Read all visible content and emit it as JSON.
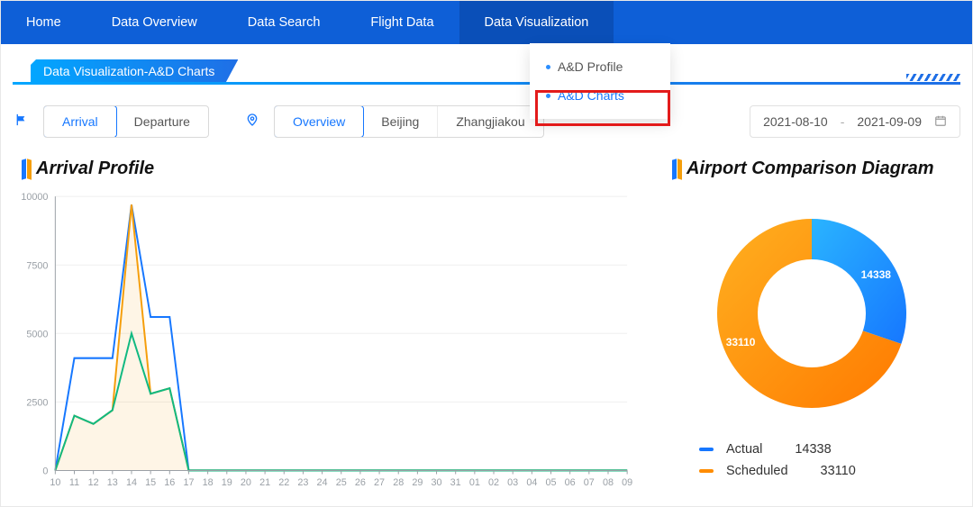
{
  "nav": {
    "items": [
      "Home",
      "Data Overview",
      "Data Search",
      "Flight Data",
      "Data Visualization"
    ],
    "active_index": 4,
    "dropdown": {
      "items": [
        "A&D Profile",
        "A&D Charts"
      ],
      "highlight_index": 1
    }
  },
  "breadcrumb": "Data Visualization-A&D Charts",
  "filters": {
    "mode": {
      "options": [
        "Arrival",
        "Departure"
      ],
      "selected_index": 0
    },
    "airport": {
      "options": [
        "Overview",
        "Beijing",
        "Zhangjiakou"
      ],
      "selected_index": 0
    },
    "date_from": "2021-08-10",
    "date_to": "2021-09-09"
  },
  "arrival_chart": {
    "title": "Arrival Profile",
    "type": "line",
    "x_labels": [
      "10",
      "11",
      "12",
      "13",
      "14",
      "15",
      "16",
      "17",
      "18",
      "19",
      "20",
      "21",
      "22",
      "23",
      "24",
      "25",
      "26",
      "27",
      "28",
      "29",
      "30",
      "31",
      "01",
      "02",
      "03",
      "04",
      "05",
      "06",
      "07",
      "08",
      "09"
    ],
    "ylim": [
      0,
      10000
    ],
    "ytick_step": 2500,
    "grid_color": "#efefef",
    "axis_color": "#9aa0a6",
    "tick_fontsize": 11,
    "background_color": "#ffffff",
    "series": [
      {
        "name": "series_blue",
        "color": "#1677ff",
        "line_width": 2,
        "values": [
          0,
          4100,
          4100,
          4100,
          9700,
          5600,
          5600,
          0,
          0,
          0,
          0,
          0,
          0,
          0,
          0,
          0,
          0,
          0,
          0,
          0,
          0,
          0,
          0,
          0,
          0,
          0,
          0,
          0,
          0,
          0,
          0
        ]
      },
      {
        "name": "series_orange",
        "color": "#f59e0b",
        "line_width": 2,
        "fill_opacity": 0.1,
        "values": [
          0,
          2000,
          1700,
          2200,
          9700,
          2800,
          3000,
          0,
          0,
          0,
          0,
          0,
          0,
          0,
          0,
          0,
          0,
          0,
          0,
          0,
          0,
          0,
          0,
          0,
          0,
          0,
          0,
          0,
          0,
          0,
          0
        ]
      },
      {
        "name": "series_green",
        "color": "#10b981",
        "line_width": 2,
        "values": [
          0,
          2000,
          1700,
          2200,
          5000,
          2800,
          3000,
          0,
          0,
          0,
          0,
          0,
          0,
          0,
          0,
          0,
          0,
          0,
          0,
          0,
          0,
          0,
          0,
          0,
          0,
          0,
          0,
          0,
          0,
          0,
          0
        ]
      }
    ]
  },
  "donut": {
    "title": "Airport Comparison Diagram",
    "type": "donut",
    "background_color": "#ffffff",
    "inner_radius_ratio": 0.55,
    "slices": [
      {
        "label": "Actual",
        "value": 14338,
        "color_start": "#2ab4ff",
        "color_end": "#1677ff"
      },
      {
        "label": "Scheduled",
        "value": 33110,
        "color_start": "#ffb020",
        "color_end": "#ff7a00"
      }
    ],
    "slice_label_fontsize": 12,
    "legend": {
      "items": [
        {
          "label": "Actual",
          "value": "14338",
          "color": "#1677ff"
        },
        {
          "label": "Scheduled",
          "value": "33110",
          "color": "#ff8c00"
        }
      ]
    }
  }
}
